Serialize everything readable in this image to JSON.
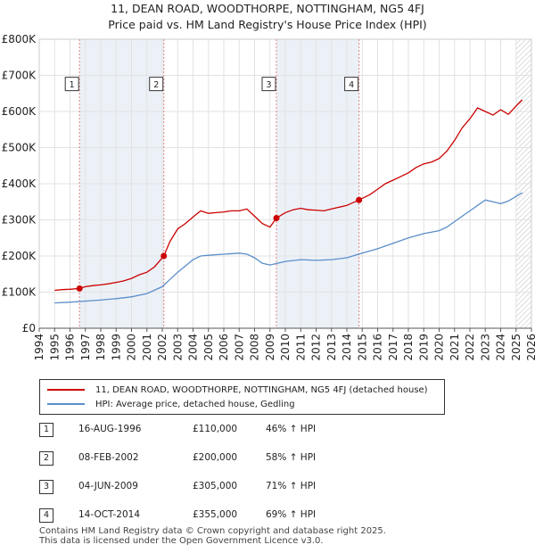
{
  "chart_data": {
    "type": "line",
    "title": "11, DEAN ROAD, WOODTHORPE, NOTTINGHAM, NG5 4FJ",
    "subtitle": "Price paid vs. HM Land Registry's House Price Index (HPI)",
    "xlabel": "",
    "ylabel": "",
    "xlim": [
      1994,
      2026
    ],
    "ylim": [
      0,
      800000
    ],
    "x_ticks": [
      "1994",
      "1995",
      "1996",
      "1997",
      "1998",
      "1999",
      "2000",
      "2001",
      "2002",
      "2003",
      "2004",
      "2005",
      "2006",
      "2007",
      "2008",
      "2009",
      "2010",
      "2011",
      "2012",
      "2013",
      "2014",
      "2015",
      "2016",
      "2017",
      "2018",
      "2019",
      "2020",
      "2021",
      "2022",
      "2023",
      "2024",
      "2025",
      "2026"
    ],
    "y_ticks": [
      {
        "value": 0,
        "label": "£0"
      },
      {
        "value": 100000,
        "label": "£100K"
      },
      {
        "value": 200000,
        "label": "£200K"
      },
      {
        "value": 300000,
        "label": "£300K"
      },
      {
        "value": 400000,
        "label": "£400K"
      },
      {
        "value": 500000,
        "label": "£500K"
      },
      {
        "value": 600000,
        "label": "£600K"
      },
      {
        "value": 700000,
        "label": "£700K"
      },
      {
        "value": 800000,
        "label": "£800K"
      }
    ],
    "grid": true,
    "future_hatch_from": 2025.0,
    "colors": {
      "property": "#cc0000",
      "hpi": "#5b8ec9",
      "vline": "#e08080",
      "shade": "#dde6f2",
      "grid": "#e2e2e2",
      "axis": "#555555"
    },
    "series": [
      {
        "name": "11, DEAN ROAD, WOODTHORPE, NOTTINGHAM, NG5 4FJ (detached house)",
        "color": "#cc0000",
        "x": [
          1995.0,
          1995.5,
          1996.0,
          1996.62,
          1997.0,
          1997.5,
          1998.0,
          1998.5,
          1999.0,
          1999.5,
          2000.0,
          2000.5,
          2001.0,
          2001.5,
          2002.1,
          2002.5,
          2003.0,
          2003.5,
          2004.0,
          2004.5,
          2005.0,
          2005.5,
          2006.0,
          2006.5,
          2007.0,
          2007.5,
          2008.0,
          2008.5,
          2009.0,
          2009.42,
          2010.0,
          2010.5,
          2011.0,
          2011.5,
          2012.0,
          2012.5,
          2013.0,
          2013.5,
          2014.0,
          2014.79,
          2015.5,
          2016.0,
          2016.5,
          2017.0,
          2017.5,
          2018.0,
          2018.5,
          2019.0,
          2019.5,
          2020.0,
          2020.5,
          2021.0,
          2021.5,
          2022.0,
          2022.5,
          2023.0,
          2023.5,
          2024.0,
          2024.5,
          2025.0,
          2025.4
        ],
        "values": [
          105000,
          107000,
          108000,
          110000,
          115000,
          118000,
          120000,
          123000,
          127000,
          131000,
          138000,
          148000,
          155000,
          170000,
          200000,
          240000,
          275000,
          290000,
          308000,
          325000,
          318000,
          320000,
          322000,
          325000,
          325000,
          330000,
          310000,
          290000,
          280000,
          305000,
          320000,
          328000,
          332000,
          328000,
          327000,
          325000,
          330000,
          335000,
          340000,
          355000,
          370000,
          385000,
          400000,
          410000,
          420000,
          430000,
          445000,
          455000,
          460000,
          470000,
          490000,
          520000,
          555000,
          580000,
          610000,
          600000,
          590000,
          605000,
          592000,
          615000,
          632000
        ]
      },
      {
        "name": "HPI: Average price, detached house, Gedling",
        "color": "#5b8ec9",
        "x": [
          1995.0,
          1996.0,
          1997.0,
          1998.0,
          1999.0,
          2000.0,
          2001.0,
          2002.0,
          2002.5,
          2003.0,
          2003.5,
          2004.0,
          2004.5,
          2005.0,
          2006.0,
          2007.0,
          2007.5,
          2008.0,
          2008.5,
          2009.0,
          2009.5,
          2010.0,
          2011.0,
          2012.0,
          2013.0,
          2014.0,
          2015.0,
          2016.0,
          2017.0,
          2018.0,
          2019.0,
          2020.0,
          2020.5,
          2021.0,
          2021.5,
          2022.0,
          2022.5,
          2023.0,
          2023.5,
          2024.0,
          2024.5,
          2025.0,
          2025.4
        ],
        "values": [
          70000,
          72000,
          75000,
          78000,
          82000,
          87000,
          96000,
          115000,
          135000,
          155000,
          172000,
          190000,
          200000,
          202000,
          205000,
          208000,
          205000,
          195000,
          180000,
          175000,
          180000,
          185000,
          190000,
          188000,
          190000,
          195000,
          208000,
          220000,
          235000,
          250000,
          262000,
          270000,
          280000,
          295000,
          310000,
          325000,
          340000,
          355000,
          350000,
          345000,
          352000,
          365000,
          375000
        ]
      }
    ],
    "sales": [
      {
        "id": "1",
        "x": 1996.62,
        "value": 110000
      },
      {
        "id": "2",
        "x": 2002.1,
        "value": 200000
      },
      {
        "id": "3",
        "x": 2009.42,
        "value": 305000
      },
      {
        "id": "4",
        "x": 2014.79,
        "value": 355000
      }
    ],
    "sale_label_value": 675000
  },
  "title_line1": "11, DEAN ROAD, WOODTHORPE, NOTTINGHAM, NG5 4FJ",
  "title_line2": "Price paid vs. HM Land Registry's House Price Index (HPI)",
  "legend": {
    "property": "11, DEAN ROAD, WOODTHORPE, NOTTINGHAM, NG5 4FJ (detached house)",
    "hpi": "HPI: Average price, detached house, Gedling"
  },
  "transactions": [
    {
      "num": "1",
      "date": "16-AUG-1996",
      "price": "£110,000",
      "hpi": "46% ↑ HPI"
    },
    {
      "num": "2",
      "date": "08-FEB-2002",
      "price": "£200,000",
      "hpi": "58% ↑ HPI"
    },
    {
      "num": "3",
      "date": "04-JUN-2009",
      "price": "£305,000",
      "hpi": "71% ↑ HPI"
    },
    {
      "num": "4",
      "date": "14-OCT-2014",
      "price": "£355,000",
      "hpi": "69% ↑ HPI"
    }
  ],
  "footer": {
    "line1": "Contains HM Land Registry data © Crown copyright and database right 2025.",
    "line2": "This data is licensed under the Open Government Licence v3.0."
  }
}
